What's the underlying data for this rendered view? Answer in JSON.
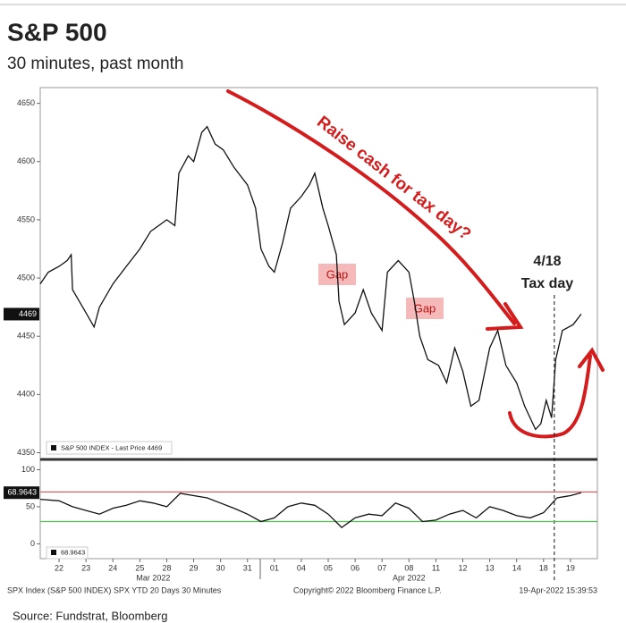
{
  "title": "S&P 500",
  "subtitle": "30 minutes, past month",
  "footer": [
    "SPX Index (S&P 500 INDEX) SPX YTD 20 Days 30 Minutes",
    "Copyright© 2022 Bloomberg Finance L.P.",
    "19-Apr-2022 15:39:53"
  ],
  "source": "Source: Fundstrat, Bloomberg",
  "chart_data": [
    {
      "type": "line",
      "name": "S&P 500 INDEX - Last Price 4469",
      "color": "#111",
      "last_value": 4469,
      "x": [
        -0.7,
        -0.4,
        0,
        0.3,
        0.45,
        0.5,
        1.0,
        1.3,
        1.5,
        2.0,
        2.5,
        3.0,
        3.4,
        4.0,
        4.3,
        4.45,
        4.8,
        5.0,
        5.3,
        5.5,
        5.8,
        6.1,
        6.5,
        7.0,
        7.3,
        7.5,
        7.8,
        8.0,
        8.3,
        8.6,
        9.0,
        9.3,
        9.5,
        9.8,
        10.0,
        10.3,
        10.4,
        10.6,
        11.0,
        11.3,
        11.6,
        12.0,
        12.2,
        12.6,
        13.0,
        13.2,
        13.4,
        13.7,
        14.1,
        14.4,
        14.7,
        15.0,
        15.3,
        15.6,
        16.0,
        16.3,
        16.6,
        17.0,
        17.3,
        17.7,
        17.9,
        18.1,
        18.3,
        18.45,
        18.7,
        19.1,
        19.4
      ],
      "values": [
        4495,
        4505,
        4510,
        4515,
        4520,
        4490,
        4470,
        4458,
        4475,
        4495,
        4510,
        4525,
        4540,
        4550,
        4545,
        4590,
        4605,
        4600,
        4625,
        4630,
        4615,
        4610,
        4595,
        4580,
        4560,
        4525,
        4510,
        4505,
        4530,
        4560,
        4570,
        4580,
        4590,
        4560,
        4545,
        4520,
        4480,
        4460,
        4470,
        4490,
        4470,
        4455,
        4505,
        4515,
        4505,
        4480,
        4450,
        4430,
        4425,
        4410,
        4440,
        4420,
        4390,
        4395,
        4440,
        4455,
        4425,
        4410,
        4390,
        4370,
        4375,
        4395,
        4380,
        4430,
        4455,
        4460,
        4469
      ],
      "xlim": [
        -0.7,
        20.0
      ],
      "ylim": [
        4345,
        4662
      ],
      "yticks": [
        4350,
        4400,
        4450,
        4500,
        4550,
        4600,
        4650
      ],
      "vline_x": 18.4,
      "annotations": [
        "Raise cash for tax day?",
        "Gap",
        "Gap",
        "4/18",
        "Tax day"
      ]
    },
    {
      "type": "line",
      "name": "68.9643",
      "color": "#111",
      "x": [
        -0.7,
        0,
        0.5,
        1,
        1.5,
        2,
        2.5,
        3,
        3.5,
        4,
        4.5,
        5,
        5.5,
        6,
        6.5,
        7,
        7.5,
        8,
        8.5,
        9,
        9.5,
        10,
        10.5,
        11,
        11.5,
        12,
        12.5,
        13,
        13.5,
        14,
        14.5,
        15,
        15.5,
        16,
        16.5,
        17,
        17.5,
        18,
        18.5,
        19,
        19.4
      ],
      "values": [
        60,
        58,
        50,
        45,
        40,
        48,
        52,
        58,
        55,
        50,
        68,
        65,
        62,
        55,
        48,
        40,
        30,
        35,
        50,
        55,
        52,
        40,
        22,
        35,
        40,
        38,
        55,
        48,
        30,
        32,
        40,
        45,
        35,
        50,
        45,
        38,
        35,
        42,
        62,
        65,
        68.9643
      ],
      "levels": [
        {
          "value": 70,
          "color": "#e06060"
        },
        {
          "value": 30,
          "color": "#50c050"
        }
      ],
      "xlim": [
        -0.7,
        20.0
      ],
      "ylim": [
        -20,
        109
      ],
      "yticks": [
        0,
        50,
        100
      ],
      "xticks": [
        {
          "value": 0,
          "label": "22"
        },
        {
          "value": 1,
          "label": "23"
        },
        {
          "value": 2,
          "label": "24"
        },
        {
          "value": 3,
          "label": "25"
        },
        {
          "value": 4,
          "label": "28"
        },
        {
          "value": 5,
          "label": "29"
        },
        {
          "value": 6,
          "label": "30"
        },
        {
          "value": 7,
          "label": "31"
        },
        {
          "value": 8,
          "label": "01"
        },
        {
          "value": 9,
          "label": "04"
        },
        {
          "value": 10,
          "label": "05"
        },
        {
          "value": 11,
          "label": "06"
        },
        {
          "value": 12,
          "label": "07"
        },
        {
          "value": 13,
          "label": "08"
        },
        {
          "value": 14,
          "label": "11"
        },
        {
          "value": 15,
          "label": "12"
        },
        {
          "value": 16,
          "label": "13"
        },
        {
          "value": 17,
          "label": "14"
        },
        {
          "value": 18,
          "label": "18"
        },
        {
          "value": 19,
          "label": "19"
        }
      ],
      "x_group_labels": [
        {
          "value": 3.5,
          "label": "Mar 2022"
        },
        {
          "value": 13,
          "label": "Apr 2022"
        }
      ]
    }
  ]
}
